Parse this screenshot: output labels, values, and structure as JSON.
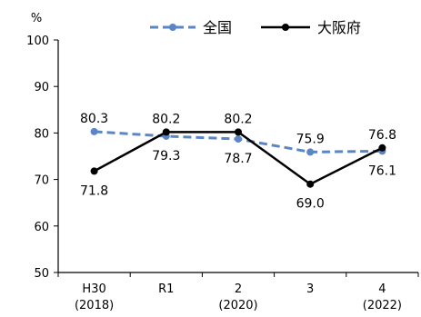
{
  "chart_data": {
    "type": "line",
    "title": "",
    "xlabel": "",
    "ylabel": "%",
    "ylim": [
      50,
      100
    ],
    "yticks": [
      50,
      60,
      70,
      80,
      90,
      100
    ],
    "categories": [
      [
        "H30",
        "(2018)"
      ],
      [
        "R1",
        ""
      ],
      [
        "2",
        "(2020)"
      ],
      [
        "3",
        ""
      ],
      [
        "4",
        "(2022)"
      ]
    ],
    "series": [
      {
        "name": "全国",
        "values": [
          80.3,
          79.3,
          78.7,
          75.9,
          76.1
        ],
        "labels": [
          "80.3",
          "79.3",
          "78.7",
          "75.9",
          "76.1"
        ],
        "color": "#5b86c5",
        "dashed": true
      },
      {
        "name": "大阪府",
        "values": [
          71.8,
          80.2,
          80.2,
          69.0,
          76.8
        ],
        "labels": [
          "71.8",
          "80.2",
          "80.2",
          "69.0",
          "76.8"
        ],
        "color": "#000000",
        "dashed": false
      }
    ],
    "legend": "top-right",
    "grid": false
  }
}
